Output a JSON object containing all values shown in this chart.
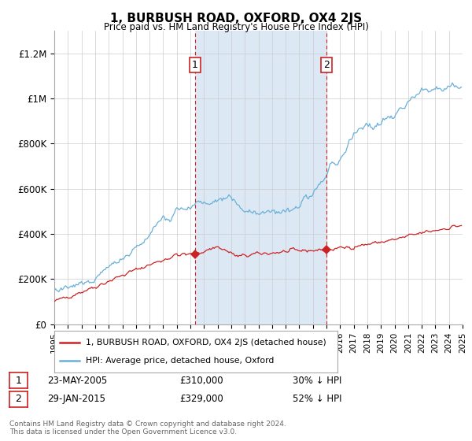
{
  "title": "1, BURBUSH ROAD, OXFORD, OX4 2JS",
  "subtitle": "Price paid vs. HM Land Registry's House Price Index (HPI)",
  "ylim": [
    0,
    1300000
  ],
  "yticks": [
    0,
    200000,
    400000,
    600000,
    800000,
    1000000,
    1200000
  ],
  "ytick_labels": [
    "£0",
    "£200K",
    "£400K",
    "£600K",
    "£800K",
    "£1M",
    "£1.2M"
  ],
  "hpi_color": "#6ab0d8",
  "price_color": "#cc2222",
  "marker1_label": "1",
  "marker2_label": "2",
  "marker1_price": 310000,
  "marker2_price": 329000,
  "marker1_year": 2005.37,
  "marker2_year": 2015.08,
  "marker1_date": "23-MAY-2005",
  "marker2_date": "29-JAN-2015",
  "marker1_pct": "30% ↓ HPI",
  "marker2_pct": "52% ↓ HPI",
  "legend_line1": "1, BURBUSH ROAD, OXFORD, OX4 2JS (detached house)",
  "legend_line2": "HPI: Average price, detached house, Oxford",
  "footnote": "Contains HM Land Registry data © Crown copyright and database right 2024.\nThis data is licensed under the Open Government Licence v3.0.",
  "shade_color": "#dce9f5",
  "grid_color": "#cccccc",
  "bg_color": "#ffffff"
}
